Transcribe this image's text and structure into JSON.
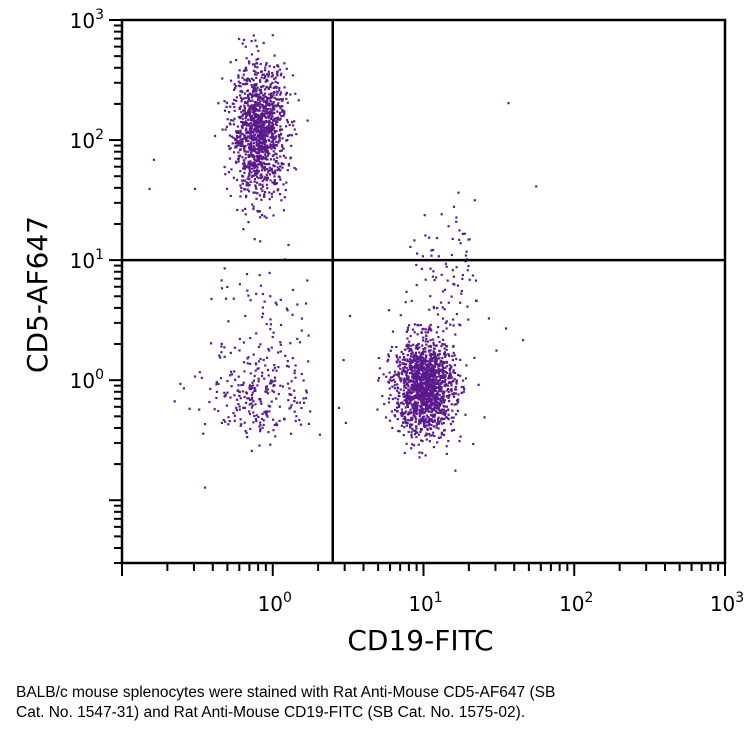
{
  "chart_data": {
    "type": "scatter",
    "title": "",
    "xlabel": "CD19-FITC",
    "ylabel": "CD5-AF647",
    "xscale": "log",
    "yscale": "log",
    "xlim": [
      0.1,
      1000
    ],
    "ylim": [
      0.03,
      1000
    ],
    "x_ticks": [
      {
        "value": 1,
        "base": "10",
        "exp": "0"
      },
      {
        "value": 10,
        "base": "10",
        "exp": "1"
      },
      {
        "value": 100,
        "base": "10",
        "exp": "2"
      },
      {
        "value": 1000,
        "base": "10",
        "exp": "3"
      }
    ],
    "y_ticks": [
      {
        "value": 1,
        "base": "10",
        "exp": "0"
      },
      {
        "value": 10,
        "base": "10",
        "exp": "1"
      },
      {
        "value": 100,
        "base": "10",
        "exp": "2"
      },
      {
        "value": 1000,
        "base": "10",
        "exp": "3"
      }
    ],
    "gates": {
      "x": 2.5,
      "y": 10
    },
    "grid": false,
    "legend": "none",
    "point_color": "#5a1a8c",
    "populations": [
      {
        "x_center": 0.8,
        "y_center": 120,
        "x_spread_log10": 0.09,
        "y_spread_log10": 0.27,
        "n": 1300
      },
      {
        "x_center": 10,
        "y_center": 0.9,
        "x_spread_log10": 0.1,
        "y_spread_log10": 0.2,
        "n": 1500
      },
      {
        "x_center": 0.8,
        "y_center": 0.8,
        "x_spread_log10": 0.17,
        "y_spread_log10": 0.2,
        "n": 260
      },
      {
        "x_center": 0.9,
        "y_center": 3.5,
        "x_spread_log10": 0.17,
        "y_spread_log10": 0.25,
        "n": 60
      },
      {
        "x_center": 14,
        "y_center": 7,
        "x_spread_log10": 0.13,
        "y_spread_log10": 0.3,
        "n": 90
      }
    ],
    "outliers": [
      {
        "x": 0.16,
        "y": 70
      },
      {
        "x": 0.15,
        "y": 40
      },
      {
        "x": 0.3,
        "y": 40
      },
      {
        "x": 0.24,
        "y": 0.95
      },
      {
        "x": 0.22,
        "y": 0.68
      },
      {
        "x": 0.35,
        "y": 0.13
      },
      {
        "x": 36,
        "y": 207
      },
      {
        "x": 55,
        "y": 42
      },
      {
        "x": 45,
        "y": 2.2
      },
      {
        "x": 30,
        "y": 1.8
      },
      {
        "x": 19,
        "y": 12
      },
      {
        "x": 3.2,
        "y": 3.5
      },
      {
        "x": 2.9,
        "y": 1.5
      },
      {
        "x": 2.7,
        "y": 0.6
      },
      {
        "x": 3.0,
        "y": 0.45
      },
      {
        "x": 25,
        "y": 0.5
      },
      {
        "x": 21,
        "y": 0.3
      },
      {
        "x": 16,
        "y": 0.18
      }
    ]
  },
  "caption": {
    "line1": "BALB/c mouse splenocytes were stained with Rat Anti-Mouse CD5-AF647 (SB",
    "line2": "Cat. No. 1547-31) and Rat Anti-Mouse CD19-FITC (SB Cat. No. 1575-02)."
  }
}
